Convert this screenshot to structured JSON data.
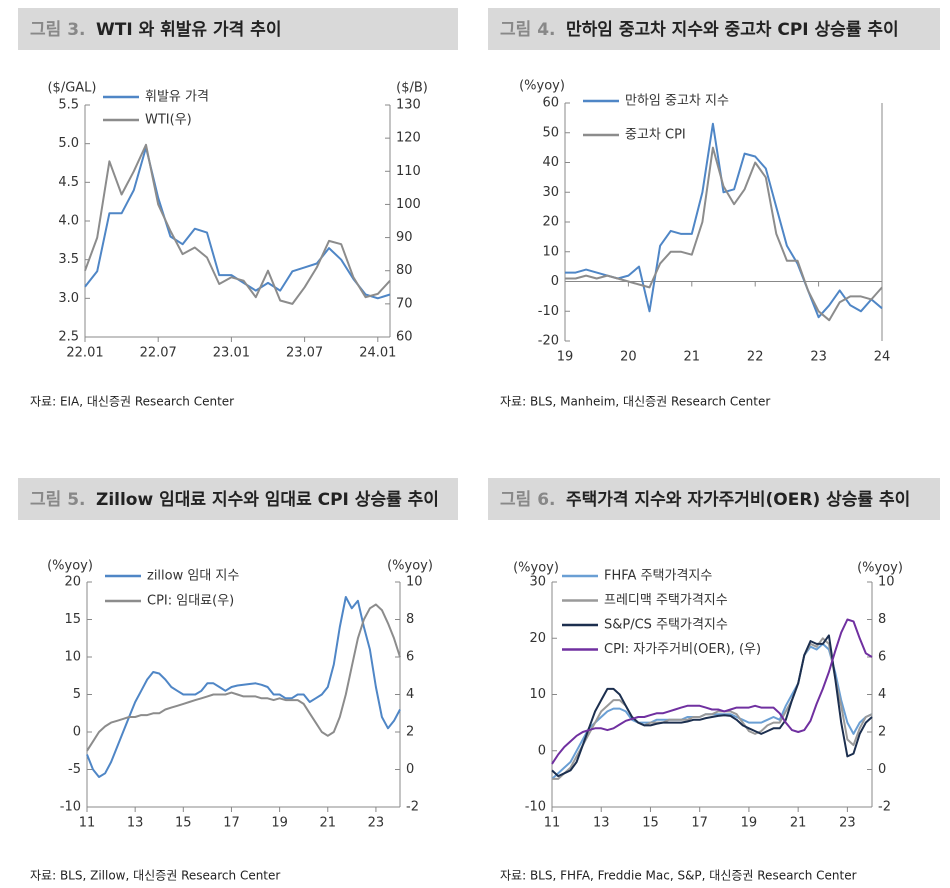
{
  "chart_data": [
    {
      "type": "line",
      "figure_label": "그림 3.",
      "title": "WTI 와 휘발유 가격 추이",
      "source": "자료: EIA, 대신증권 Research Center",
      "y_label": "($/GAL)",
      "y2_label": "($/B)",
      "legend": "upper left",
      "categories": [
        "22.01",
        null,
        null,
        null,
        null,
        null,
        "22.07",
        null,
        null,
        null,
        null,
        null,
        "23.01",
        null,
        null,
        null,
        null,
        null,
        "23.07",
        null,
        null,
        null,
        null,
        null,
        "24.01",
        null
      ],
      "ylim": [
        2.5,
        5.5
      ],
      "yticks": [
        2.5,
        {
          "value": 3,
          "label": "3.0"
        },
        3.5,
        {
          "value": 4,
          "label": "4.0"
        },
        4.5,
        {
          "value": 5,
          "label": "5.0"
        },
        5.5
      ],
      "y2lim": [
        60,
        130
      ],
      "y2ticks": [
        60,
        70,
        80,
        90,
        100,
        110,
        120,
        130
      ],
      "series": [
        {
          "name": "휘발유 가격",
          "color": "#4f86c6",
          "values": [
            3.15,
            3.35,
            4.1,
            4.1,
            4.4,
            4.95,
            4.3,
            3.8,
            3.7,
            3.9,
            3.85,
            3.3,
            3.3,
            3.2,
            3.1,
            3.2,
            3.1,
            3.35,
            3.4,
            3.45,
            3.65,
            3.5,
            3.25,
            3.05,
            3.0,
            3.05
          ]
        },
        {
          "name": "WTI(우)",
          "color": "#8c8c8c",
          "axis": "y2",
          "values": [
            80,
            90,
            113,
            103,
            110,
            118,
            100,
            92,
            85,
            87,
            84,
            76,
            78,
            77,
            72,
            80,
            71,
            70,
            75,
            81,
            89,
            88,
            78,
            72,
            73,
            77
          ]
        }
      ]
    },
    {
      "type": "line",
      "figure_label": "그림 4.",
      "title": "만하임 중고차 지수와 중고차 CPI 상승률 추이",
      "source": "자료: BLS, Manheim, 대신증권 Research Center",
      "y_label": "(%yoy)",
      "legend": "upper left",
      "x_axis_at_zero": true,
      "categories": [
        "19",
        null,
        null,
        null,
        null,
        null,
        "20",
        null,
        null,
        null,
        null,
        null,
        "21",
        null,
        null,
        null,
        null,
        null,
        "22",
        null,
        null,
        null,
        null,
        null,
        "23",
        null,
        null,
        null,
        null,
        null,
        "24"
      ],
      "ylim": [
        -20,
        60
      ],
      "yticks": [
        -20,
        -10,
        0,
        10,
        20,
        30,
        40,
        50,
        60
      ],
      "series": [
        {
          "name": "만하임 중고차 지수",
          "color": "#4f86c6",
          "values": [
            3,
            3,
            4,
            3,
            2,
            1,
            2,
            5,
            -10,
            12,
            17,
            16,
            16,
            30,
            53,
            30,
            31,
            43,
            42,
            38,
            25,
            12,
            6,
            -3,
            -12,
            -8,
            -3,
            -8,
            -10,
            -6,
            -9
          ]
        },
        {
          "name": "중고차 CPI",
          "color": "#8c8c8c",
          "values": [
            1,
            1,
            2,
            1,
            2,
            1,
            0,
            -1,
            -2,
            6,
            10,
            10,
            9,
            20,
            45,
            32,
            26,
            31,
            40,
            35,
            16,
            7,
            7,
            -3,
            -10,
            -13,
            -7,
            -5,
            -5,
            -6,
            -2
          ]
        }
      ]
    },
    {
      "type": "line",
      "figure_label": "그림 5.",
      "title": "Zillow 임대료 지수와 임대료 CPI 상승률 추이",
      "source": "자료: BLS, Zillow, 대신증권 Research Center",
      "y_label": "(%yoy)",
      "y2_label": "(%yoy)",
      "legend": "upper left",
      "categories": [
        "11",
        null,
        null,
        null,
        null,
        null,
        null,
        null,
        "13",
        null,
        null,
        null,
        null,
        null,
        null,
        null,
        "15",
        null,
        null,
        null,
        null,
        null,
        null,
        null,
        "17",
        null,
        null,
        null,
        null,
        null,
        null,
        null,
        "19",
        null,
        null,
        null,
        null,
        null,
        null,
        null,
        "21",
        null,
        null,
        null,
        null,
        null,
        null,
        null,
        "23",
        null,
        null,
        null,
        null
      ],
      "ylim": [
        -10,
        20
      ],
      "yticks": [
        -10,
        -5,
        0,
        5,
        10,
        15,
        20
      ],
      "y2lim": [
        -2,
        10
      ],
      "y2ticks": [
        -2,
        0,
        2,
        4,
        6,
        8,
        10
      ],
      "series": [
        {
          "name": "zillow 임대 지수",
          "color": "#4f86c6",
          "values": [
            -3,
            -5,
            -6,
            -5.5,
            -4,
            -2,
            0,
            2,
            4,
            5.5,
            7,
            8,
            7.8,
            7,
            6,
            5.5,
            5,
            5,
            5,
            5.5,
            6.5,
            6.5,
            6,
            5.5,
            6,
            6.2,
            6.3,
            6.4,
            6.5,
            6.3,
            6,
            5,
            5,
            4.5,
            4.5,
            5,
            5,
            4,
            4.5,
            5,
            6,
            9,
            14,
            18,
            16.5,
            17.5,
            14,
            11,
            6,
            2,
            0.5,
            1.5,
            3
          ]
        },
        {
          "name": "CPI: 임대료(우)",
          "color": "#8c8c8c",
          "axis": "y2",
          "values": [
            1,
            1.5,
            2,
            2.3,
            2.5,
            2.6,
            2.7,
            2.8,
            2.8,
            2.9,
            2.9,
            3.0,
            3.0,
            3.2,
            3.3,
            3.4,
            3.5,
            3.6,
            3.7,
            3.8,
            3.9,
            4.0,
            4.0,
            4.0,
            4.1,
            4.0,
            3.9,
            3.9,
            3.9,
            3.8,
            3.8,
            3.7,
            3.8,
            3.7,
            3.7,
            3.7,
            3.5,
            3.0,
            2.5,
            2.0,
            1.8,
            2.0,
            2.8,
            4.0,
            5.5,
            7,
            8,
            8.6,
            8.8,
            8.5,
            7.8,
            7,
            6
          ]
        }
      ]
    },
    {
      "type": "line",
      "figure_label": "그림 6.",
      "title": "주택가격 지수와 자가주거비(OER) 상승률 추이",
      "source": "자료: BLS, FHFA, Freddie Mac, S&P, 대신증권 Research Center",
      "y_label": "(%yoy)",
      "y2_label": "(%yoy)",
      "legend": "upper left",
      "categories": [
        "11",
        null,
        null,
        null,
        null,
        null,
        null,
        null,
        "13",
        null,
        null,
        null,
        null,
        null,
        null,
        null,
        "15",
        null,
        null,
        null,
        null,
        null,
        null,
        null,
        "17",
        null,
        null,
        null,
        null,
        null,
        null,
        null,
        "19",
        null,
        null,
        null,
        null,
        null,
        null,
        null,
        "21",
        null,
        null,
        null,
        null,
        null,
        null,
        null,
        "23",
        null,
        null,
        null,
        null
      ],
      "ylim": [
        -10,
        30
      ],
      "yticks": [
        -10,
        0,
        10,
        20,
        30
      ],
      "y2lim": [
        -2,
        10
      ],
      "y2ticks": [
        -2,
        0,
        2,
        4,
        6,
        8,
        10
      ],
      "series": [
        {
          "name": "FHFA 주택가격지수",
          "color": "#6a9fd4",
          "values": [
            -5,
            -4,
            -3,
            -2,
            0,
            2,
            4,
            5,
            6,
            7,
            7.5,
            7.5,
            7,
            5.5,
            5,
            5,
            5,
            5.5,
            5.5,
            5.5,
            5.5,
            5.5,
            6,
            6,
            6,
            6.5,
            6.5,
            6.5,
            6.5,
            6.5,
            6,
            5.5,
            5,
            5,
            5,
            5.5,
            6,
            5.5,
            8,
            10,
            12,
            17,
            18.5,
            18,
            19,
            18,
            14,
            9,
            5,
            3,
            5,
            6,
            6.5
          ]
        },
        {
          "name": "프레디맥 주택가격지수",
          "color": "#9a9a9a",
          "values": [
            -5,
            -5,
            -4,
            -3,
            -1,
            1,
            3,
            5,
            7,
            8,
            9,
            9,
            8,
            6,
            5,
            4.5,
            5,
            5,
            5,
            5.5,
            5.5,
            5.5,
            5.5,
            6,
            6,
            6.5,
            6.5,
            7,
            7,
            7,
            6.5,
            5,
            3.5,
            3,
            3.5,
            4.5,
            5,
            5,
            7,
            9,
            12,
            17,
            19,
            18.5,
            20,
            19,
            13,
            8,
            2,
            1,
            4,
            6,
            6.5
          ]
        },
        {
          "name": "S&P/CS 주택가격지수",
          "color": "#1c2f4f",
          "values": [
            -3.5,
            -4.5,
            -4,
            -3.5,
            -2,
            1,
            4,
            7,
            9,
            11,
            11,
            10,
            8,
            6,
            5,
            4.5,
            4.5,
            4.8,
            5,
            5,
            5,
            5,
            5.2,
            5.5,
            5.5,
            5.8,
            6,
            6.2,
            6.3,
            6.2,
            5.5,
            4.5,
            4,
            3.5,
            3,
            3.5,
            4,
            4,
            5.5,
            9,
            12,
            17,
            19.5,
            19,
            19,
            20.5,
            13,
            5,
            -1,
            -0.5,
            3,
            5,
            6
          ]
        },
        {
          "name": "CPI: 자가주거비(OER), (우)",
          "color": "#7030a0",
          "axis": "y2",
          "values": [
            0.3,
            0.8,
            1.2,
            1.5,
            1.8,
            2.0,
            2.1,
            2.2,
            2.2,
            2.1,
            2.2,
            2.4,
            2.6,
            2.7,
            2.8,
            2.8,
            2.9,
            3.0,
            3.0,
            3.1,
            3.2,
            3.3,
            3.4,
            3.4,
            3.4,
            3.3,
            3.2,
            3.2,
            3.1,
            3.2,
            3.3,
            3.3,
            3.3,
            3.4,
            3.3,
            3.3,
            3.3,
            3.0,
            2.5,
            2.1,
            2.0,
            2.1,
            2.6,
            3.5,
            4.3,
            5.2,
            6.3,
            7.3,
            8.0,
            7.9,
            7.0,
            6.2,
            6
          ]
        }
      ]
    }
  ]
}
